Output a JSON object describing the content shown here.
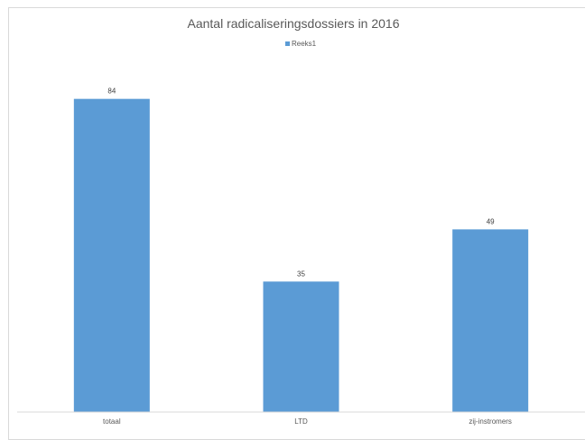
{
  "chart_data": {
    "type": "bar",
    "title": "Aantal radicaliseringsdossiers in 2016",
    "categories": [
      "totaal",
      "LTD",
      "zij-instromers"
    ],
    "series": [
      {
        "name": "Reeks1",
        "values": [
          84,
          35,
          49
        ],
        "color": "#5B9BD5"
      }
    ],
    "data_labels": true,
    "legend_position": "top",
    "ylim": [
      0,
      100
    ],
    "grid": false,
    "xlabel": "",
    "ylabel": ""
  }
}
